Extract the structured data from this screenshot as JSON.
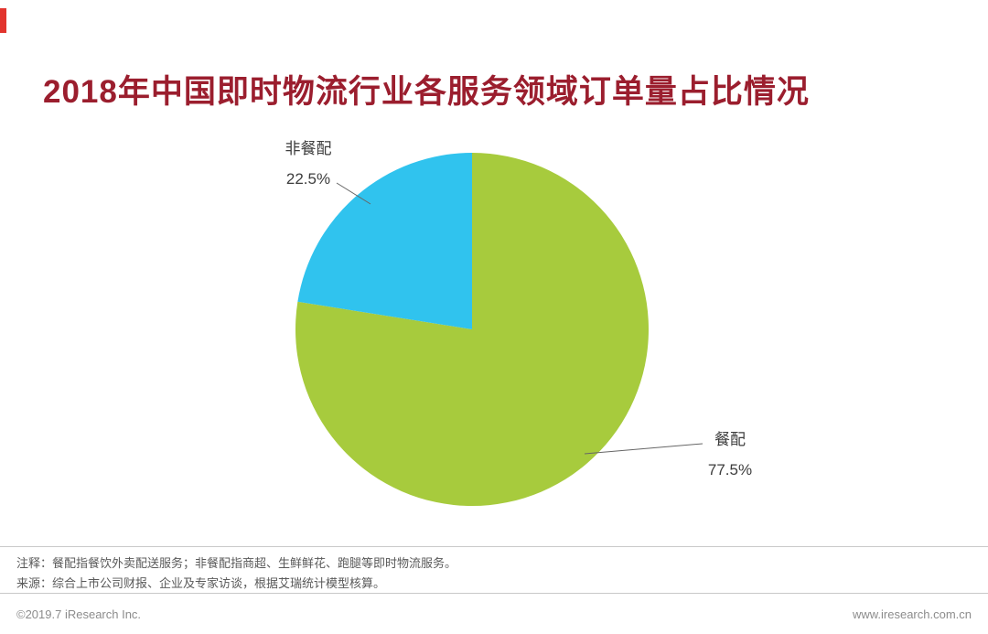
{
  "title": "2018年中国即时物流行业各服务领域订单量占比情况",
  "chart_data": {
    "type": "pie",
    "title": "2018年中国即时物流行业各服务领域订单量占比情况",
    "start_angle_deg": 0,
    "direction": "clockwise",
    "legend_position": "none",
    "slices": [
      {
        "label": "餐配",
        "value": 77.5,
        "value_label": "77.5%",
        "color": "#a7cb3d"
      },
      {
        "label": "非餐配",
        "value": 22.5,
        "value_label": "22.5%",
        "color": "#30c3ee"
      }
    ]
  },
  "notes": {
    "line1": "注释：餐配指餐饮外卖配送服务；非餐配指商超、生鲜鲜花、跑腿等即时物流服务。",
    "line2": "来源：综合上市公司财报、企业及专家访谈，根据艾瑞统计模型核算。"
  },
  "footer": {
    "copyright": "©2019.7 iResearch Inc.",
    "website": "www.iresearch.com.cn"
  }
}
